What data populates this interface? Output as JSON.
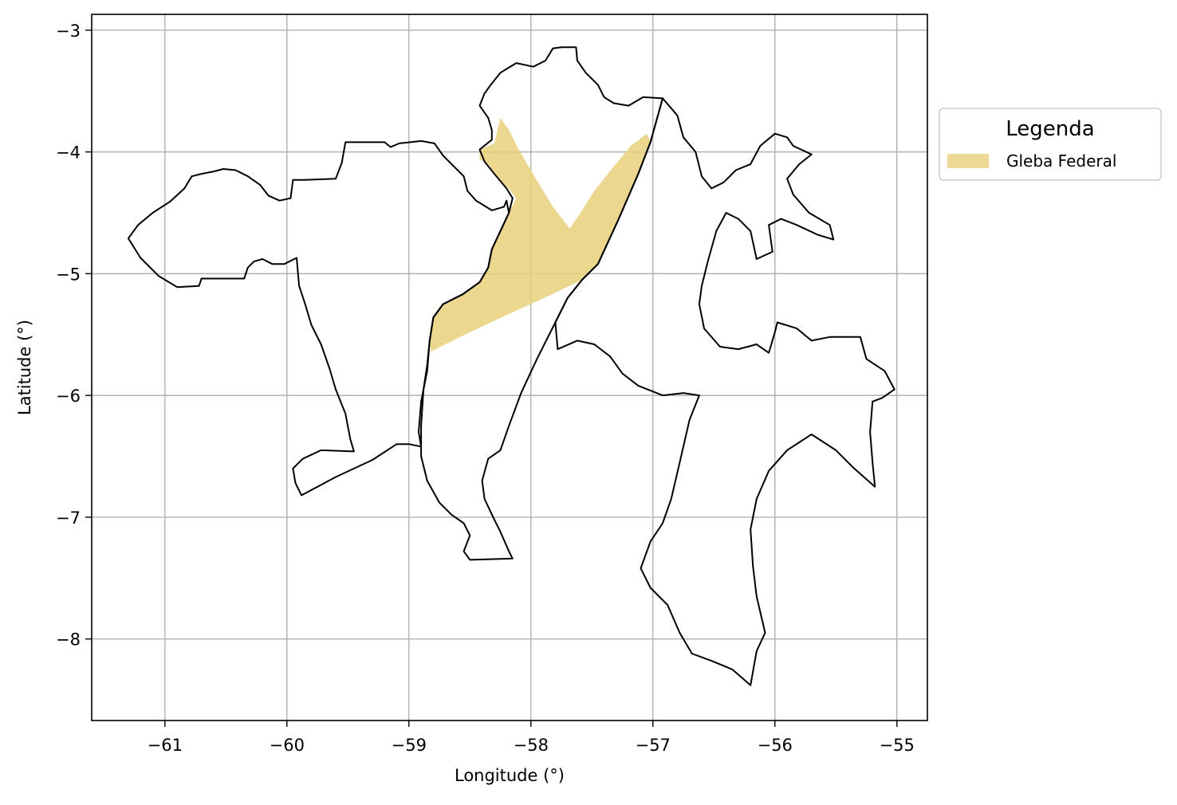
{
  "chart_data": {
    "type": "map",
    "xlabel": "Longitude (°)",
    "ylabel": "Latitude (°)",
    "xlim": [
      -61.6,
      -54.75
    ],
    "ylim": [
      -8.67,
      -2.87
    ],
    "xticks": [
      -61,
      -60,
      -59,
      -58,
      -57,
      -56,
      -55
    ],
    "yticks": [
      -3,
      -4,
      -5,
      -6,
      -7,
      -8
    ],
    "xtick_labels": [
      "−61",
      "−60",
      "−59",
      "−58",
      "−57",
      "−56",
      "−55"
    ],
    "ytick_labels": [
      "−3",
      "−4",
      "−5",
      "−6",
      "−7",
      "−8"
    ],
    "grid": true,
    "legend": {
      "title": "Legenda",
      "placement": "outside right, upper",
      "entries": [
        {
          "label": "Gleba Federal",
          "color": "#e8d07a"
        }
      ]
    },
    "layers": [
      {
        "name": "Gleba Federal",
        "kind": "filled-polygon",
        "fill": "#e8d07a",
        "coords": [
          [
            -58.42,
            -3.98
          ],
          [
            -58.3,
            -3.93
          ],
          [
            -58.25,
            -3.72
          ],
          [
            -58.18,
            -3.82
          ],
          [
            -58.1,
            -3.98
          ],
          [
            -57.96,
            -4.22
          ],
          [
            -57.82,
            -4.45
          ],
          [
            -57.68,
            -4.63
          ],
          [
            -57.58,
            -4.48
          ],
          [
            -57.48,
            -4.32
          ],
          [
            -57.32,
            -4.12
          ],
          [
            -57.18,
            -3.95
          ],
          [
            -57.05,
            -3.85
          ],
          [
            -57.02,
            -3.92
          ],
          [
            -57.12,
            -4.18
          ],
          [
            -57.28,
            -4.55
          ],
          [
            -57.45,
            -4.92
          ],
          [
            -57.58,
            -5.05
          ],
          [
            -57.85,
            -5.18
          ],
          [
            -58.2,
            -5.34
          ],
          [
            -58.5,
            -5.48
          ],
          [
            -58.82,
            -5.64
          ],
          [
            -58.83,
            -5.55
          ],
          [
            -58.8,
            -5.36
          ],
          [
            -58.72,
            -5.25
          ],
          [
            -58.56,
            -5.17
          ],
          [
            -58.42,
            -5.07
          ],
          [
            -58.35,
            -4.95
          ],
          [
            -58.32,
            -4.8
          ],
          [
            -58.25,
            -4.65
          ],
          [
            -58.18,
            -4.5
          ],
          [
            -58.12,
            -4.38
          ],
          [
            -58.18,
            -4.3
          ],
          [
            -58.23,
            -4.27
          ],
          [
            -58.3,
            -4.18
          ],
          [
            -58.35,
            -4.1
          ],
          [
            -58.42,
            -4.06
          ]
        ]
      },
      {
        "name": "outline-west",
        "kind": "outline",
        "stroke": "#000000",
        "coords": [
          [
            -61.3,
            -4.71
          ],
          [
            -61.22,
            -4.6
          ],
          [
            -61.1,
            -4.5
          ],
          [
            -60.96,
            -4.41
          ],
          [
            -60.84,
            -4.3
          ],
          [
            -60.78,
            -4.2
          ],
          [
            -60.7,
            -4.18
          ],
          [
            -60.6,
            -4.16
          ],
          [
            -60.52,
            -4.14
          ],
          [
            -60.42,
            -4.15
          ],
          [
            -60.32,
            -4.2
          ],
          [
            -60.22,
            -4.27
          ],
          [
            -60.15,
            -4.36
          ],
          [
            -60.06,
            -4.4
          ],
          [
            -59.97,
            -4.38
          ],
          [
            -59.95,
            -4.23
          ],
          [
            -59.88,
            -4.23
          ],
          [
            -59.6,
            -4.22
          ],
          [
            -59.55,
            -4.09
          ],
          [
            -59.52,
            -3.92
          ],
          [
            -59.2,
            -3.92
          ],
          [
            -59.15,
            -3.96
          ],
          [
            -59.08,
            -3.93
          ],
          [
            -58.9,
            -3.91
          ],
          [
            -58.79,
            -3.93
          ],
          [
            -58.72,
            -4.03
          ],
          [
            -58.65,
            -4.1
          ],
          [
            -58.55,
            -4.2
          ],
          [
            -58.52,
            -4.32
          ],
          [
            -58.45,
            -4.4
          ],
          [
            -58.32,
            -4.48
          ],
          [
            -58.22,
            -4.45
          ],
          [
            -58.2,
            -4.4
          ],
          [
            -58.18,
            -4.5
          ],
          [
            -58.25,
            -4.65
          ],
          [
            -58.32,
            -4.8
          ],
          [
            -58.35,
            -4.95
          ],
          [
            -58.42,
            -5.07
          ],
          [
            -58.56,
            -5.17
          ],
          [
            -58.72,
            -5.25
          ],
          [
            -58.8,
            -5.36
          ],
          [
            -58.83,
            -5.55
          ],
          [
            -58.85,
            -5.8
          ],
          [
            -58.9,
            -6.05
          ],
          [
            -58.92,
            -6.3
          ],
          [
            -58.9,
            -6.42
          ],
          [
            -59.0,
            -6.4
          ],
          [
            -59.1,
            -6.4
          ],
          [
            -59.3,
            -6.53
          ],
          [
            -59.6,
            -6.67
          ],
          [
            -59.88,
            -6.82
          ],
          [
            -59.93,
            -6.72
          ],
          [
            -59.95,
            -6.6
          ],
          [
            -59.87,
            -6.52
          ],
          [
            -59.72,
            -6.45
          ],
          [
            -59.45,
            -6.46
          ],
          [
            -59.48,
            -6.36
          ],
          [
            -59.52,
            -6.15
          ],
          [
            -59.6,
            -5.95
          ],
          [
            -59.65,
            -5.78
          ],
          [
            -59.72,
            -5.58
          ],
          [
            -59.8,
            -5.42
          ],
          [
            -59.85,
            -5.25
          ],
          [
            -59.9,
            -5.1
          ],
          [
            -59.92,
            -4.87
          ],
          [
            -60.02,
            -4.92
          ],
          [
            -60.12,
            -4.92
          ],
          [
            -60.2,
            -4.88
          ],
          [
            -60.27,
            -4.9
          ],
          [
            -60.32,
            -4.95
          ],
          [
            -60.35,
            -5.04
          ],
          [
            -60.7,
            -5.04
          ],
          [
            -60.72,
            -5.1
          ],
          [
            -60.9,
            -5.11
          ],
          [
            -61.05,
            -5.02
          ],
          [
            -61.2,
            -4.87
          ],
          [
            -61.3,
            -4.71
          ]
        ]
      },
      {
        "name": "outline-central",
        "kind": "outline",
        "stroke": "#000000",
        "coords": [
          [
            -58.32,
            -3.82
          ],
          [
            -58.35,
            -3.72
          ],
          [
            -58.42,
            -3.62
          ],
          [
            -58.38,
            -3.52
          ],
          [
            -58.33,
            -3.45
          ],
          [
            -58.25,
            -3.35
          ],
          [
            -58.12,
            -3.27
          ],
          [
            -57.98,
            -3.3
          ],
          [
            -57.88,
            -3.25
          ],
          [
            -57.82,
            -3.15
          ],
          [
            -57.75,
            -3.14
          ],
          [
            -57.63,
            -3.14
          ],
          [
            -57.62,
            -3.25
          ],
          [
            -57.55,
            -3.35
          ],
          [
            -57.45,
            -3.45
          ],
          [
            -57.4,
            -3.55
          ],
          [
            -57.32,
            -3.6
          ],
          [
            -57.2,
            -3.62
          ],
          [
            -57.08,
            -3.55
          ],
          [
            -56.92,
            -3.56
          ],
          [
            -57.02,
            -3.92
          ],
          [
            -57.12,
            -4.18
          ],
          [
            -57.28,
            -4.55
          ],
          [
            -57.45,
            -4.92
          ],
          [
            -57.58,
            -5.05
          ],
          [
            -57.7,
            -5.2
          ],
          [
            -57.8,
            -5.4
          ],
          [
            -57.95,
            -5.7
          ],
          [
            -58.08,
            -5.98
          ],
          [
            -58.18,
            -6.25
          ],
          [
            -58.25,
            -6.45
          ],
          [
            -58.35,
            -6.52
          ],
          [
            -58.4,
            -6.7
          ],
          [
            -58.38,
            -6.85
          ],
          [
            -58.3,
            -7.02
          ],
          [
            -58.25,
            -7.12
          ],
          [
            -58.18,
            -7.28
          ],
          [
            -58.15,
            -7.34
          ],
          [
            -58.5,
            -7.35
          ],
          [
            -58.55,
            -7.28
          ],
          [
            -58.5,
            -7.15
          ],
          [
            -58.55,
            -7.05
          ],
          [
            -58.65,
            -6.98
          ],
          [
            -58.75,
            -6.88
          ],
          [
            -58.85,
            -6.7
          ],
          [
            -58.9,
            -6.5
          ],
          [
            -58.9,
            -6.25
          ],
          [
            -58.88,
            -5.95
          ],
          [
            -58.85,
            -5.75
          ],
          [
            -58.83,
            -5.55
          ],
          [
            -58.8,
            -5.36
          ],
          [
            -58.72,
            -5.25
          ],
          [
            -58.56,
            -5.17
          ],
          [
            -58.42,
            -5.07
          ],
          [
            -58.35,
            -4.95
          ],
          [
            -58.32,
            -4.8
          ],
          [
            -58.25,
            -4.65
          ],
          [
            -58.18,
            -4.5
          ],
          [
            -58.15,
            -4.38
          ],
          [
            -58.2,
            -4.3
          ],
          [
            -58.3,
            -4.18
          ],
          [
            -58.38,
            -4.08
          ],
          [
            -58.42,
            -3.98
          ],
          [
            -58.32,
            -3.9
          ],
          [
            -58.32,
            -3.82
          ]
        ]
      },
      {
        "name": "outline-east",
        "kind": "outline",
        "stroke": "#000000",
        "coords": [
          [
            -56.92,
            -3.56
          ],
          [
            -56.8,
            -3.7
          ],
          [
            -56.75,
            -3.88
          ],
          [
            -56.65,
            -4.0
          ],
          [
            -56.6,
            -4.2
          ],
          [
            -56.52,
            -4.3
          ],
          [
            -56.42,
            -4.25
          ],
          [
            -56.32,
            -4.15
          ],
          [
            -56.2,
            -4.1
          ],
          [
            -56.12,
            -3.95
          ],
          [
            -56.0,
            -3.85
          ],
          [
            -55.9,
            -3.88
          ],
          [
            -55.85,
            -3.95
          ],
          [
            -55.7,
            -4.02
          ],
          [
            -55.8,
            -4.1
          ],
          [
            -55.9,
            -4.22
          ],
          [
            -55.85,
            -4.35
          ],
          [
            -55.72,
            -4.5
          ],
          [
            -55.55,
            -4.6
          ],
          [
            -55.52,
            -4.72
          ],
          [
            -55.65,
            -4.68
          ],
          [
            -55.82,
            -4.6
          ],
          [
            -55.95,
            -4.55
          ],
          [
            -56.05,
            -4.6
          ],
          [
            -56.02,
            -4.82
          ],
          [
            -56.15,
            -4.88
          ],
          [
            -56.2,
            -4.65
          ],
          [
            -56.3,
            -4.55
          ],
          [
            -56.4,
            -4.5
          ],
          [
            -56.48,
            -4.65
          ],
          [
            -56.55,
            -4.9
          ],
          [
            -56.6,
            -5.1
          ],
          [
            -56.62,
            -5.25
          ],
          [
            -56.58,
            -5.45
          ],
          [
            -56.45,
            -5.6
          ],
          [
            -56.3,
            -5.62
          ],
          [
            -56.15,
            -5.58
          ],
          [
            -56.05,
            -5.65
          ],
          [
            -56.0,
            -5.48
          ],
          [
            -55.98,
            -5.4
          ],
          [
            -55.82,
            -5.45
          ],
          [
            -55.7,
            -5.55
          ],
          [
            -55.55,
            -5.52
          ],
          [
            -55.3,
            -5.52
          ],
          [
            -55.25,
            -5.7
          ],
          [
            -55.1,
            -5.8
          ],
          [
            -55.02,
            -5.95
          ],
          [
            -55.12,
            -6.02
          ],
          [
            -55.2,
            -6.05
          ],
          [
            -55.22,
            -6.3
          ],
          [
            -55.2,
            -6.55
          ],
          [
            -55.18,
            -6.75
          ],
          [
            -55.35,
            -6.6
          ],
          [
            -55.5,
            -6.45
          ],
          [
            -55.7,
            -6.32
          ],
          [
            -55.9,
            -6.45
          ],
          [
            -56.05,
            -6.62
          ],
          [
            -56.15,
            -6.85
          ],
          [
            -56.2,
            -7.1
          ],
          [
            -56.18,
            -7.4
          ],
          [
            -56.15,
            -7.65
          ],
          [
            -56.08,
            -7.95
          ],
          [
            -56.15,
            -8.1
          ],
          [
            -56.2,
            -8.38
          ],
          [
            -56.35,
            -8.25
          ],
          [
            -56.52,
            -8.18
          ],
          [
            -56.68,
            -8.12
          ],
          [
            -56.78,
            -7.95
          ],
          [
            -56.88,
            -7.72
          ],
          [
            -57.02,
            -7.58
          ],
          [
            -57.1,
            -7.42
          ],
          [
            -57.02,
            -7.2
          ],
          [
            -56.92,
            -7.05
          ],
          [
            -56.85,
            -6.85
          ],
          [
            -56.78,
            -6.55
          ],
          [
            -56.7,
            -6.2
          ],
          [
            -56.62,
            -6.0
          ],
          [
            -56.75,
            -5.98
          ],
          [
            -56.92,
            -6.0
          ],
          [
            -57.12,
            -5.92
          ],
          [
            -57.25,
            -5.82
          ],
          [
            -57.35,
            -5.68
          ],
          [
            -57.48,
            -5.58
          ],
          [
            -57.62,
            -5.55
          ],
          [
            -57.78,
            -5.62
          ],
          [
            -57.8,
            -5.4
          ],
          [
            -57.7,
            -5.2
          ],
          [
            -57.58,
            -5.05
          ],
          [
            -57.45,
            -4.92
          ],
          [
            -57.28,
            -4.55
          ],
          [
            -57.12,
            -4.18
          ],
          [
            -57.02,
            -3.92
          ],
          [
            -56.92,
            -3.56
          ]
        ]
      }
    ]
  }
}
